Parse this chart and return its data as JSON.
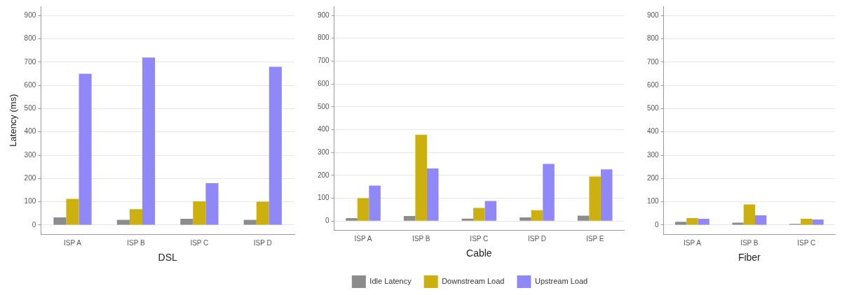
{
  "chart_data": [
    {
      "type": "bar",
      "xlabel": "DSL",
      "ylabel": "Latency (ms)",
      "categories": [
        "ISP A",
        "ISP B",
        "ISP C",
        "ISP D"
      ],
      "series": [
        {
          "color": "#8c8c8c",
          "values": [
            33,
            22,
            27,
            22
          ]
        },
        {
          "color": "#cbb010",
          "values": [
            112,
            68,
            102,
            100
          ]
        },
        {
          "color": "#9188f7",
          "values": [
            650,
            720,
            180,
            680
          ]
        }
      ],
      "ylim": [
        -40,
        940
      ],
      "yticks": [
        0,
        100,
        200,
        300,
        400,
        500,
        600,
        700,
        800,
        900
      ],
      "grid": "y",
      "legend": false
    },
    {
      "type": "bar",
      "xlabel": "Cable",
      "categories": [
        "ISP A",
        "ISP B",
        "ISP C",
        "ISP D",
        "ISP E"
      ],
      "series": [
        {
          "name": "Idle Latency",
          "color": "#8c8c8c",
          "values": [
            13,
            22,
            10,
            16,
            23
          ]
        },
        {
          "name": "Downstream Load",
          "color": "#cbb010",
          "values": [
            100,
            378,
            57,
            47,
            195
          ]
        },
        {
          "name": "Upstream Load",
          "color": "#9188f7",
          "values": [
            155,
            230,
            88,
            250,
            226
          ]
        }
      ],
      "ylim": [
        -40,
        940
      ],
      "yticks": [
        0,
        100,
        200,
        300,
        400,
        500,
        600,
        700,
        800,
        900
      ],
      "grid": "y",
      "legend": "bottom"
    },
    {
      "type": "bar",
      "xlabel": "Fiber",
      "categories": [
        "ISP A",
        "ISP B",
        "ISP C"
      ],
      "series": [
        {
          "color": "#8c8c8c",
          "values": [
            14,
            10,
            5
          ]
        },
        {
          "color": "#cbb010",
          "values": [
            30,
            88,
            27
          ]
        },
        {
          "color": "#9188f7",
          "values": [
            27,
            42,
            24
          ]
        }
      ],
      "ylim": [
        -40,
        940
      ],
      "yticks": [
        0,
        100,
        200,
        300,
        400,
        500,
        600,
        700,
        800,
        900
      ],
      "grid": "y",
      "legend": false
    }
  ]
}
